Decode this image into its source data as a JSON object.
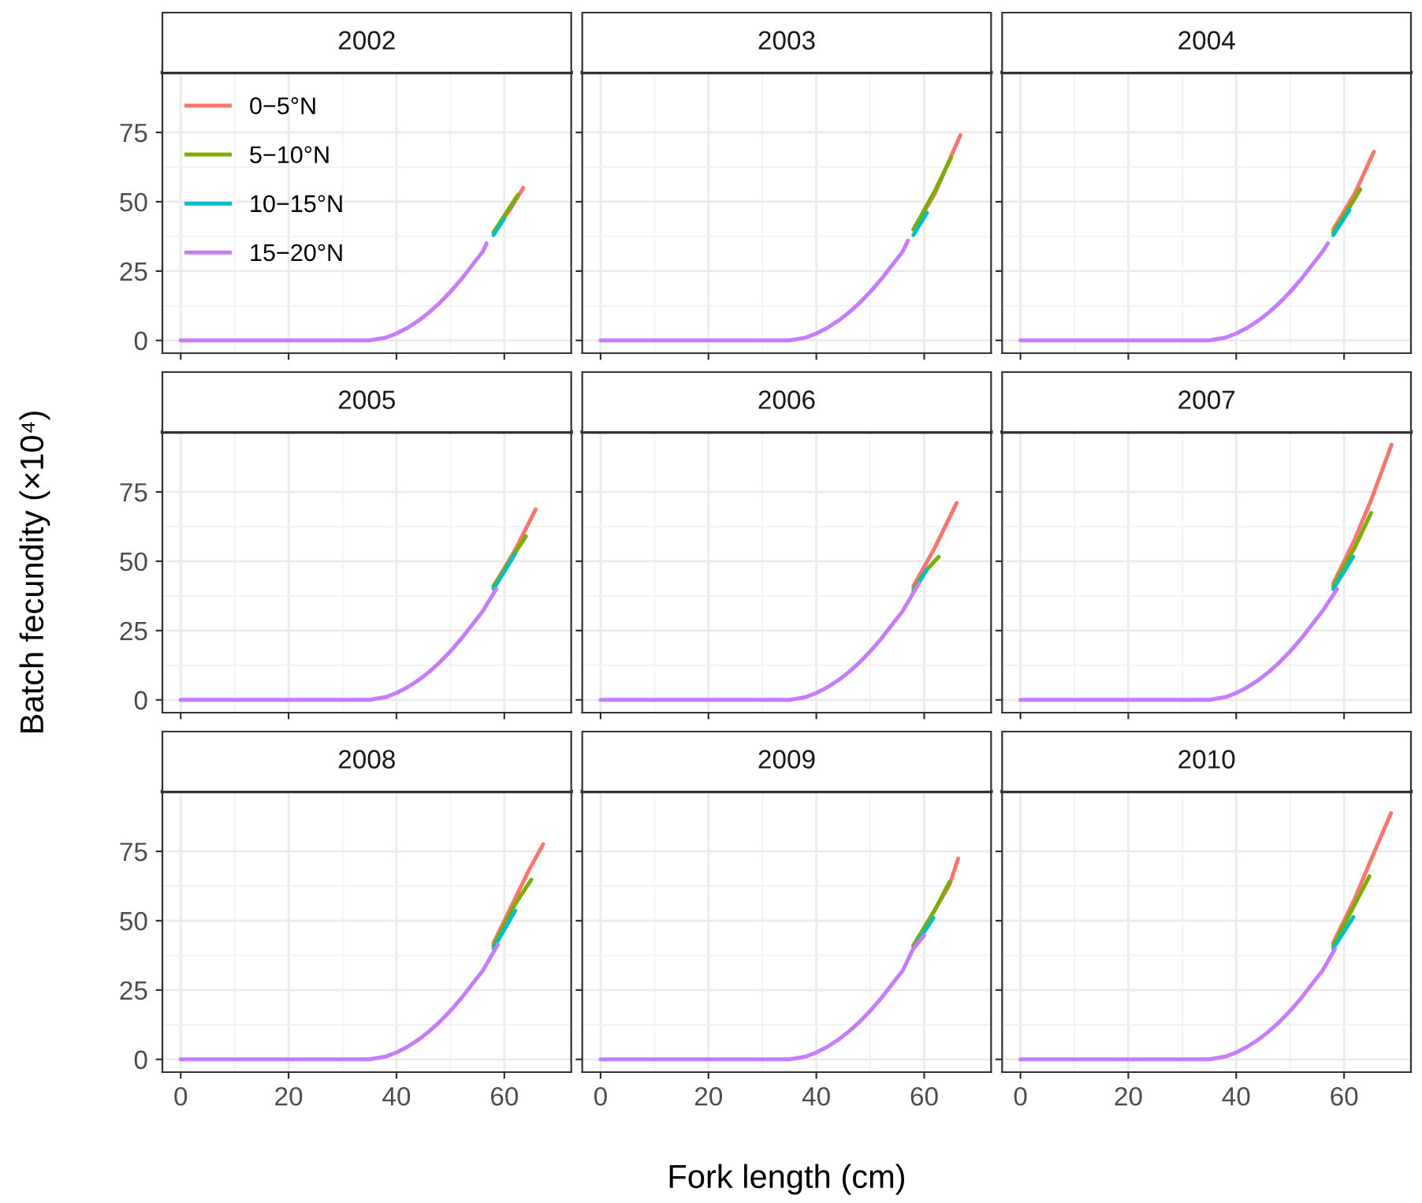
{
  "chart_data": [
    {
      "type": "line",
      "title": "2002",
      "ylabel": "Batch fecundity (×10⁴)",
      "xlim": [
        -3.4,
        72.4
      ],
      "ylim": [
        -4.6,
        96.6
      ],
      "xticks": [
        0,
        20,
        40,
        60
      ],
      "yticks": [
        0,
        25,
        50,
        75
      ],
      "grid": true,
      "legend": "top left",
      "tick_labels": "y",
      "series": [
        {
          "name": "0−5°N",
          "color": "#f8766d",
          "x": [
            58,
            61,
            63.5
          ],
          "values": [
            39,
            47,
            55
          ]
        },
        {
          "name": "5−10°N",
          "color": "#7cae00",
          "x": [
            58,
            60,
            62.5
          ],
          "values": [
            39,
            45,
            52.5
          ]
        },
        {
          "name": "10−15°N",
          "color": "#00bfc4",
          "x": [
            58,
            60
          ],
          "values": [
            38,
            44
          ]
        },
        {
          "name": "15−20°N",
          "color": "#c77cff",
          "x": [
            0,
            35,
            38,
            40,
            42,
            44,
            46,
            48,
            50,
            52,
            54,
            56,
            56.7
          ],
          "values": [
            0,
            0,
            1,
            2.5,
            4.5,
            7,
            10,
            13.5,
            17.5,
            22,
            27,
            32,
            35
          ]
        }
      ]
    },
    {
      "type": "line",
      "title": "2003",
      "xlim": [
        -3.4,
        72.4
      ],
      "ylim": [
        -4.6,
        96.6
      ],
      "xticks": [
        0,
        20,
        40,
        60
      ],
      "yticks": [
        0,
        25,
        50,
        75
      ],
      "grid": true,
      "tick_labels": false,
      "series": [
        {
          "color": "#f8766d",
          "x": [
            58,
            62,
            64,
            66.7
          ],
          "values": [
            40,
            53,
            62,
            74
          ]
        },
        {
          "color": "#7cae00",
          "x": [
            58,
            62,
            65
          ],
          "values": [
            40,
            54,
            66
          ]
        },
        {
          "color": "#00bfc4",
          "x": [
            58,
            60.5
          ],
          "values": [
            38,
            46
          ]
        },
        {
          "color": "#c77cff",
          "x": [
            0,
            35,
            38,
            40,
            42,
            44,
            46,
            48,
            50,
            52,
            54,
            56,
            57
          ],
          "values": [
            0,
            0,
            1,
            2.5,
            4.5,
            7,
            10,
            13.5,
            17.5,
            22,
            27,
            32,
            36
          ]
        }
      ]
    },
    {
      "type": "line",
      "title": "2004",
      "xlim": [
        -3.4,
        72.4
      ],
      "ylim": [
        -4.6,
        96.6
      ],
      "xticks": [
        0,
        20,
        40,
        60
      ],
      "yticks": [
        0,
        25,
        50,
        75
      ],
      "grid": true,
      "tick_labels": false,
      "series": [
        {
          "color": "#f8766d",
          "x": [
            58,
            62,
            65.5
          ],
          "values": [
            40,
            53,
            68
          ]
        },
        {
          "color": "#7cae00",
          "x": [
            58,
            61,
            63
          ],
          "values": [
            39,
            48,
            54.5
          ]
        },
        {
          "color": "#00bfc4",
          "x": [
            58,
            61
          ],
          "values": [
            38,
            47
          ]
        },
        {
          "color": "#c77cff",
          "x": [
            0,
            35,
            38,
            40,
            42,
            44,
            46,
            48,
            50,
            52,
            54,
            56,
            57
          ],
          "values": [
            0,
            0,
            1,
            2.5,
            4.5,
            7,
            10,
            13.5,
            17.5,
            22,
            27,
            32,
            35
          ]
        }
      ]
    },
    {
      "type": "line",
      "title": "2005",
      "xlim": [
        -3.4,
        72.4
      ],
      "ylim": [
        -4.6,
        96.6
      ],
      "xticks": [
        0,
        20,
        40,
        60
      ],
      "yticks": [
        0,
        25,
        50,
        75
      ],
      "grid": true,
      "tick_labels": "y",
      "series": [
        {
          "color": "#f8766d",
          "x": [
            58,
            62,
            65.8
          ],
          "values": [
            41,
            54,
            68.7
          ]
        },
        {
          "color": "#7cae00",
          "x": [
            58,
            61,
            64
          ],
          "values": [
            41,
            50,
            59
          ]
        },
        {
          "color": "#00bfc4",
          "x": [
            58,
            62
          ],
          "values": [
            40,
            52.6
          ]
        },
        {
          "color": "#c77cff",
          "x": [
            0,
            35,
            38,
            40,
            42,
            44,
            46,
            48,
            50,
            52,
            54,
            56,
            58.5
          ],
          "values": [
            0,
            0,
            1,
            2.5,
            4.5,
            7,
            10,
            13.5,
            17.5,
            22,
            27,
            32,
            40
          ]
        }
      ]
    },
    {
      "type": "line",
      "title": "2006",
      "xlim": [
        -3.4,
        72.4
      ],
      "ylim": [
        -4.6,
        96.6
      ],
      "xticks": [
        0,
        20,
        40,
        60
      ],
      "yticks": [
        0,
        25,
        50,
        75
      ],
      "grid": true,
      "tick_labels": false,
      "series": [
        {
          "color": "#f8766d",
          "x": [
            58,
            62,
            66
          ],
          "values": [
            41,
            55,
            71
          ]
        },
        {
          "color": "#7cae00",
          "x": [
            58,
            60.5,
            62.7
          ],
          "values": [
            40,
            47,
            51.6
          ]
        },
        {
          "color": "#00bfc4",
          "x": [
            58,
            60.5
          ],
          "values": [
            39,
            47
          ]
        },
        {
          "color": "#c77cff",
          "x": [
            0,
            35,
            38,
            40,
            42,
            44,
            46,
            48,
            50,
            52,
            54,
            56,
            59
          ],
          "values": [
            0,
            0,
            1,
            2.5,
            4.5,
            7,
            10,
            13.5,
            17.5,
            22,
            27,
            32,
            42
          ]
        }
      ]
    },
    {
      "type": "line",
      "title": "2007",
      "xlim": [
        -3.4,
        72.4
      ],
      "ylim": [
        -4.6,
        96.6
      ],
      "xticks": [
        0,
        20,
        40,
        60
      ],
      "yticks": [
        0,
        25,
        50,
        75
      ],
      "grid": true,
      "tick_labels": false,
      "series": [
        {
          "color": "#f8766d",
          "x": [
            58,
            62,
            65,
            68.8
          ],
          "values": [
            42,
            58,
            72,
            92
          ]
        },
        {
          "color": "#7cae00",
          "x": [
            58,
            62,
            65
          ],
          "values": [
            41,
            55,
            67.4
          ]
        },
        {
          "color": "#00bfc4",
          "x": [
            58,
            61.7
          ],
          "values": [
            40,
            51.6
          ]
        },
        {
          "color": "#c77cff",
          "x": [
            0,
            35,
            38,
            40,
            42,
            44,
            46,
            48,
            50,
            52,
            54,
            56,
            58.7
          ],
          "values": [
            0,
            0,
            1,
            2.5,
            4.5,
            7,
            10,
            13.5,
            17.5,
            22,
            27,
            32,
            40
          ]
        }
      ]
    },
    {
      "type": "line",
      "title": "2008",
      "xlim": [
        -3.4,
        72.4
      ],
      "ylim": [
        -4.6,
        96.6
      ],
      "xticks": [
        0,
        20,
        40,
        60
      ],
      "yticks": [
        0,
        25,
        50,
        75
      ],
      "grid": true,
      "series": [
        {
          "color": "#f8766d",
          "x": [
            58,
            62,
            64.5,
            67.2
          ],
          "values": [
            42,
            58,
            68,
            77.6
          ]
        },
        {
          "color": "#7cae00",
          "x": [
            58,
            62,
            65
          ],
          "values": [
            41,
            56,
            64.8
          ]
        },
        {
          "color": "#00bfc4",
          "x": [
            58,
            62
          ],
          "values": [
            40,
            53.6
          ]
        },
        {
          "color": "#c77cff",
          "x": [
            0,
            35,
            38,
            40,
            42,
            44,
            46,
            48,
            50,
            52,
            54,
            56,
            58.8
          ],
          "values": [
            0,
            0,
            1,
            2.5,
            4.5,
            7,
            10,
            13.5,
            17.5,
            22,
            27,
            32,
            41.4
          ]
        }
      ]
    },
    {
      "type": "line",
      "title": "2009",
      "xlabel": "Fork length (cm)",
      "xlim": [
        -3.4,
        72.4
      ],
      "ylim": [
        -4.6,
        96.6
      ],
      "xticks": [
        0,
        20,
        40,
        60
      ],
      "yticks": [
        0,
        25,
        50,
        75
      ],
      "grid": true,
      "tick_labels": "x",
      "series": [
        {
          "color": "#f8766d",
          "x": [
            58,
            62,
            64.7,
            66.3
          ],
          "values": [
            41,
            54,
            63,
            72.4
          ]
        },
        {
          "color": "#7cae00",
          "x": [
            58,
            62,
            64.7
          ],
          "values": [
            41,
            54,
            64
          ]
        },
        {
          "color": "#00bfc4",
          "x": [
            58,
            61.7
          ],
          "values": [
            40,
            51
          ]
        },
        {
          "color": "#c77cff",
          "x": [
            0,
            35,
            38,
            40,
            42,
            44,
            46,
            48,
            50,
            52,
            54,
            56,
            58,
            60
          ],
          "values": [
            0,
            0,
            1,
            2.5,
            4.5,
            7,
            10,
            13.5,
            17.5,
            22,
            27,
            32,
            40,
            44.7
          ]
        }
      ]
    },
    {
      "type": "line",
      "title": "2010",
      "xlim": [
        -3.4,
        72.4
      ],
      "ylim": [
        -4.6,
        96.6
      ],
      "xticks": [
        0,
        20,
        40,
        60
      ],
      "yticks": [
        0,
        25,
        50,
        75
      ],
      "grid": true,
      "tick_labels": "x",
      "series": [
        {
          "color": "#f8766d",
          "x": [
            58,
            62,
            65,
            68.7
          ],
          "values": [
            42,
            58,
            72,
            88.8
          ]
        },
        {
          "color": "#7cae00",
          "x": [
            58,
            62,
            64.7
          ],
          "values": [
            41,
            56,
            66
          ]
        },
        {
          "color": "#00bfc4",
          "x": [
            58,
            61.7
          ],
          "values": [
            40,
            51.3
          ]
        },
        {
          "color": "#c77cff",
          "x": [
            0,
            35,
            38,
            40,
            42,
            44,
            46,
            48,
            50,
            52,
            54,
            56,
            58.3
          ],
          "values": [
            0,
            0,
            1,
            2.5,
            4.5,
            7,
            10,
            13.5,
            17.5,
            22,
            27,
            32,
            39.8
          ]
        }
      ]
    }
  ]
}
